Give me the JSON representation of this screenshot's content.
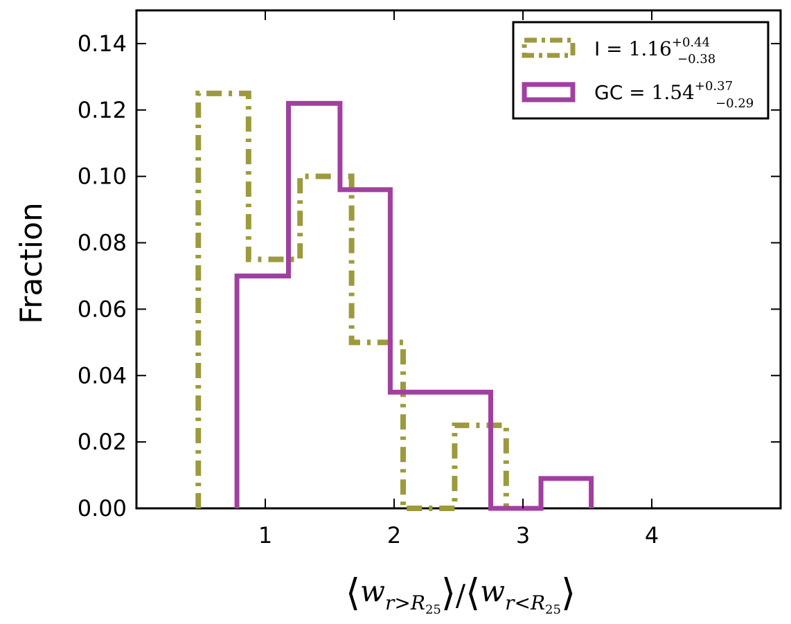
{
  "chart_data": {
    "type": "histogram",
    "ylabel": "Fraction",
    "xlabel": "⟨w_{r>R25}⟩/⟨w_{r<R25}⟩",
    "xlim": [
      0,
      5
    ],
    "ylim": [
      0,
      0.15
    ],
    "xticks": [
      1,
      2,
      3,
      4
    ],
    "xtick_labels": [
      "1",
      "2",
      "3",
      "4"
    ],
    "yticks": [
      0.0,
      0.02,
      0.04,
      0.06,
      0.08,
      0.1,
      0.12,
      0.14
    ],
    "ytick_labels": [
      "0.00",
      "0.02",
      "0.04",
      "0.06",
      "0.08",
      "0.10",
      "0.12",
      "0.14"
    ],
    "legend_position": "top-right",
    "series": [
      {
        "name": "I",
        "legend_value": "1.16",
        "legend_plus": "+0.44",
        "legend_minus": "−0.38",
        "color": "#9c9a3c",
        "style": "dashdot",
        "bin_edges": [
          0.48,
          0.87,
          1.27,
          1.67,
          2.07,
          2.47,
          2.87
        ],
        "values": [
          0.125,
          0.075,
          0.1,
          0.05,
          0.0,
          0.025
        ]
      },
      {
        "name": "GC",
        "legend_value": "1.54",
        "legend_plus": "+0.37",
        "legend_minus": "−0.29",
        "color": "#a040a0",
        "style": "solid",
        "bin_edges": [
          0.78,
          1.18,
          1.58,
          1.97,
          2.36,
          2.75,
          3.14,
          3.53
        ],
        "values": [
          0.07,
          0.122,
          0.096,
          0.035,
          0.035,
          0.0,
          0.009
        ]
      }
    ]
  }
}
